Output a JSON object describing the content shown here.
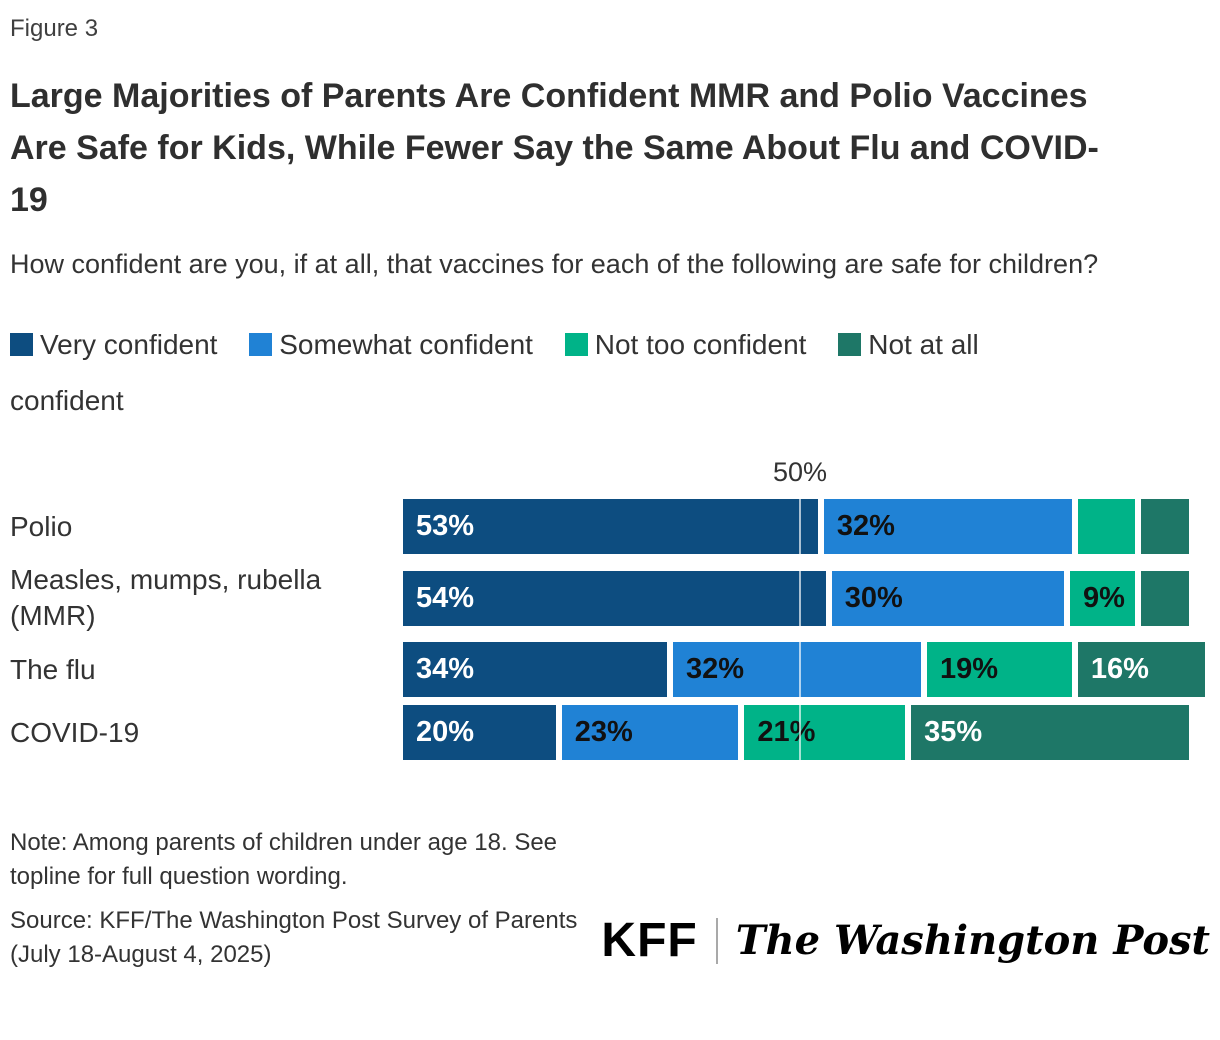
{
  "figure_label": "Figure 3",
  "title": "Large Majorities of Parents Are Confident MMR and Polio Vaccines Are Safe for Kids, While Fewer Say the Same About Flu and COVID-19",
  "subtitle": "How confident are you, if at all, that vaccines for each of the following are safe for children?",
  "chart_data": {
    "type": "bar",
    "stacked": true,
    "orientation": "horizontal",
    "xlim": [
      0,
      100
    ],
    "axis_tick": {
      "label": "50%",
      "value": 50
    },
    "grid": "single vertical gridline at 50%, drawn white over bars",
    "legend_position": "top",
    "categories": [
      "Polio",
      "Measles, mumps, rubella (MMR)",
      "The flu",
      "COVID-19"
    ],
    "series": [
      {
        "name": "Very confident",
        "color": "#0d4d80",
        "label_color": "#ffffff",
        "values": [
          53,
          54,
          34,
          20
        ]
      },
      {
        "name": "Somewhat confident",
        "color": "#2082d5",
        "label_color": "#111111",
        "values": [
          32,
          30,
          32,
          23
        ]
      },
      {
        "name": "Not too confident",
        "color": "#00b388",
        "label_color": "#111111",
        "values": [
          8,
          9,
          19,
          21
        ]
      },
      {
        "name": "Not at all confident",
        "color": "#1e7767",
        "label_color": "#ffffff",
        "values": [
          6,
          6,
          16,
          35
        ]
      }
    ],
    "bar_labels": [
      [
        "53%",
        "32%",
        "",
        ""
      ],
      [
        "54%",
        "30%",
        "9%",
        ""
      ],
      [
        "34%",
        "32%",
        "19%",
        "16%"
      ],
      [
        "20%",
        "23%",
        "21%",
        "35%"
      ]
    ]
  },
  "note": "Note: Among parents of children under age 18. See topline for full question wording.",
  "source": "Source: KFF/The Washington Post Survey of Parents (July 18-August 4, 2025)",
  "logos": {
    "kff": "KFF",
    "wapo": "The Washington Post"
  }
}
